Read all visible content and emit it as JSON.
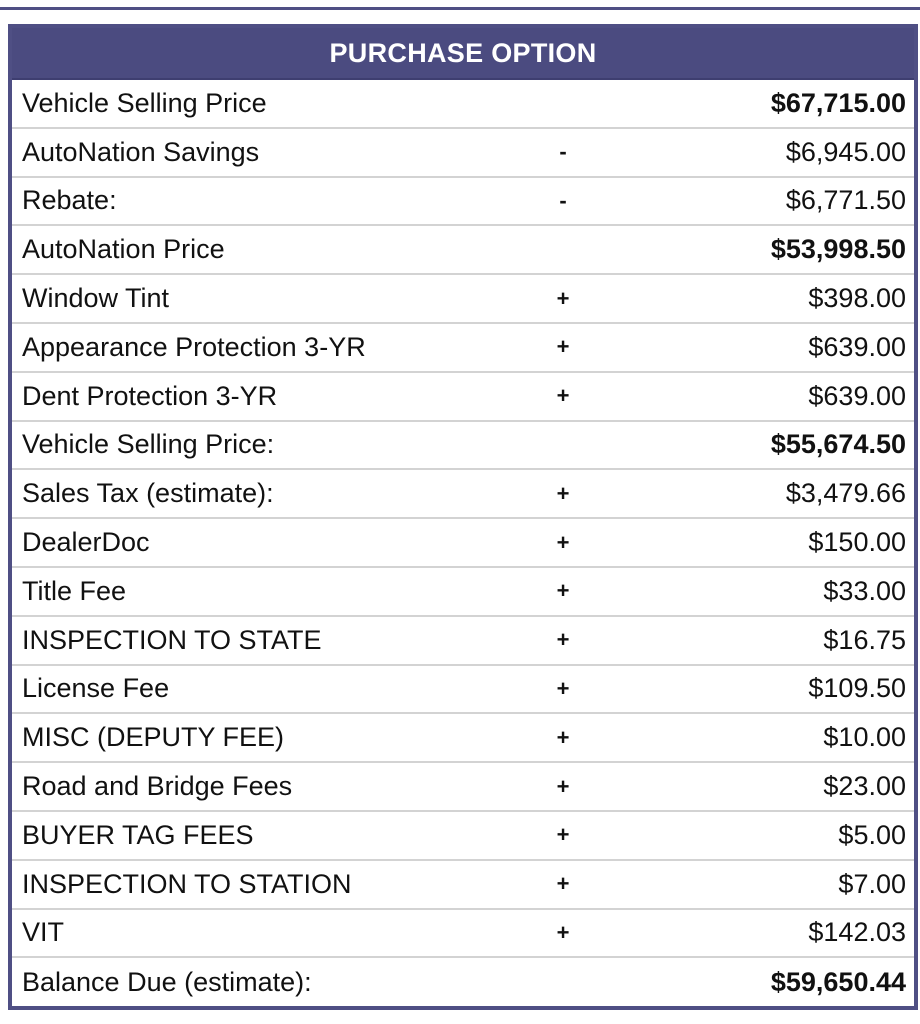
{
  "table": {
    "title": "PURCHASE OPTION",
    "rows": [
      {
        "label": "Vehicle Selling Price",
        "op": "",
        "value": "$67,715.00",
        "bold": true
      },
      {
        "label": "AutoNation Savings",
        "op": "-",
        "value": "$6,945.00",
        "bold": false
      },
      {
        "label": "Rebate:",
        "op": "-",
        "value": "$6,771.50",
        "bold": false
      },
      {
        "label": "AutoNation Price",
        "op": "",
        "value": "$53,998.50",
        "bold": true
      },
      {
        "label": "Window Tint",
        "op": "+",
        "value": "$398.00",
        "bold": false
      },
      {
        "label": "Appearance Protection 3-YR",
        "op": "+",
        "value": "$639.00",
        "bold": false
      },
      {
        "label": "Dent Protection 3-YR",
        "op": "+",
        "value": "$639.00",
        "bold": false
      },
      {
        "label": "Vehicle Selling Price:",
        "op": "",
        "value": "$55,674.50",
        "bold": true
      },
      {
        "label": "Sales Tax (estimate):",
        "op": "+",
        "value": "$3,479.66",
        "bold": false
      },
      {
        "label": "DealerDoc",
        "op": "+",
        "value": "$150.00",
        "bold": false
      },
      {
        "label": "Title Fee",
        "op": "+",
        "value": "$33.00",
        "bold": false
      },
      {
        "label": "INSPECTION TO STATE",
        "op": "+",
        "value": "$16.75",
        "bold": false
      },
      {
        "label": "License Fee",
        "op": "+",
        "value": "$109.50",
        "bold": false
      },
      {
        "label": "MISC (DEPUTY FEE)",
        "op": "+",
        "value": "$10.00",
        "bold": false
      },
      {
        "label": "Road and Bridge Fees",
        "op": "+",
        "value": "$23.00",
        "bold": false
      },
      {
        "label": "BUYER TAG FEES",
        "op": "+",
        "value": "$5.00",
        "bold": false
      },
      {
        "label": "INSPECTION TO STATION",
        "op": "+",
        "value": "$7.00",
        "bold": false
      },
      {
        "label": "VIT",
        "op": "+",
        "value": "$142.03",
        "bold": false
      },
      {
        "label": "Balance Due (estimate):",
        "op": "",
        "value": "$59,650.44",
        "bold": true
      }
    ]
  },
  "colors": {
    "header_bg": "#4b4b80",
    "border": "#4f4f84",
    "row_divider": "#d3d3d3"
  }
}
